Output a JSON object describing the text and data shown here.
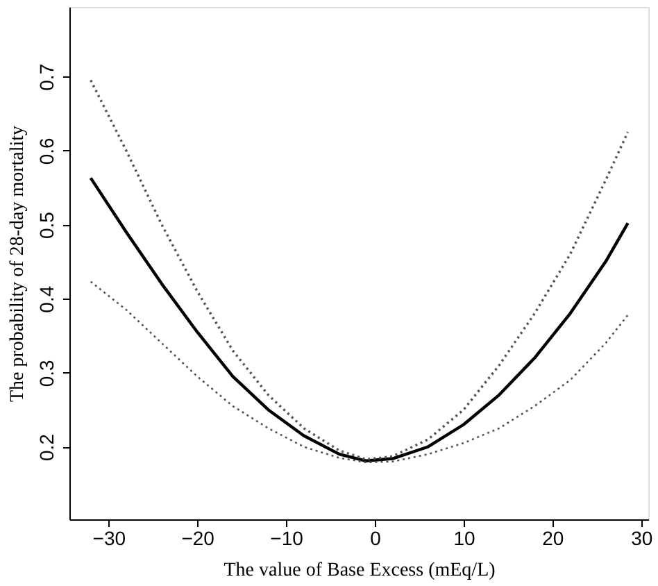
{
  "chart_data": {
    "type": "line",
    "xlabel": "The value of Base Excess (mEq/L)",
    "ylabel": "The probability of 28-day mortality",
    "x": [
      -32,
      -28,
      -24,
      -20,
      -16,
      -12,
      -8,
      -4,
      -1,
      2,
      6,
      10,
      14,
      18,
      22,
      26,
      28.5
    ],
    "series": [
      {
        "color": "#000000",
        "line_style": "solid",
        "values": [
          0.563,
          0.49,
          0.42,
          0.355,
          0.295,
          0.25,
          0.215,
          0.19,
          0.181,
          0.184,
          0.2,
          0.23,
          0.27,
          0.32,
          0.38,
          0.45,
          0.502
        ]
      },
      {
        "color": "#555555",
        "line_style": "dotted",
        "values": [
          0.695,
          0.6,
          0.5,
          0.41,
          0.33,
          0.27,
          0.225,
          0.195,
          0.183,
          0.187,
          0.21,
          0.25,
          0.31,
          0.38,
          0.46,
          0.56,
          0.625
        ]
      },
      {
        "color": "#555555",
        "line_style": "dotted",
        "values": [
          0.423,
          0.385,
          0.34,
          0.295,
          0.255,
          0.225,
          0.2,
          0.185,
          0.179,
          0.18,
          0.19,
          0.205,
          0.225,
          0.255,
          0.29,
          0.34,
          0.378
        ]
      }
    ],
    "xlim": [
      -34.4,
      30.8
    ],
    "ylim": [
      0.102,
      0.794
    ],
    "xticks": [
      -30,
      -20,
      -10,
      0,
      10,
      20,
      30
    ],
    "yticks": [
      0.2,
      0.3,
      0.4,
      0.5,
      0.6,
      0.7
    ],
    "grid": false,
    "legend": false
  }
}
